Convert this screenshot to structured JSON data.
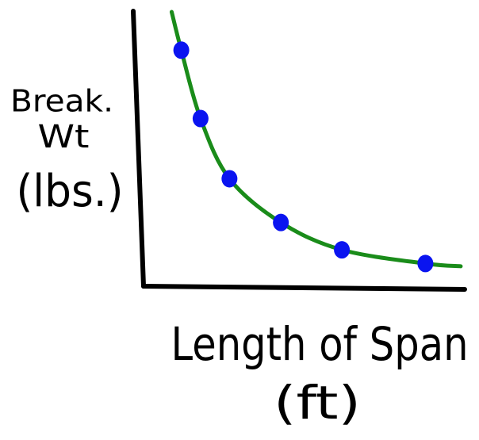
{
  "chart_data": {
    "type": "scatter",
    "x_label": [
      "Length of Span",
      "(ft)"
    ],
    "y_label": [
      "Break.",
      "Wt",
      "(lbs.)"
    ],
    "x": [
      12,
      18,
      27,
      43,
      62,
      88
    ],
    "values": [
      86,
      61,
      39,
      23,
      13,
      8
    ],
    "color": "#0a14f0",
    "curve": {
      "x": [
        9,
        12,
        18,
        27,
        43,
        62,
        88,
        99
      ],
      "values": [
        100,
        86,
        61,
        39,
        23,
        13,
        8,
        7
      ],
      "color": "#1a8c1a"
    },
    "xlim": [
      0,
      100
    ],
    "ylim": [
      0,
      100
    ],
    "grid": false
  }
}
